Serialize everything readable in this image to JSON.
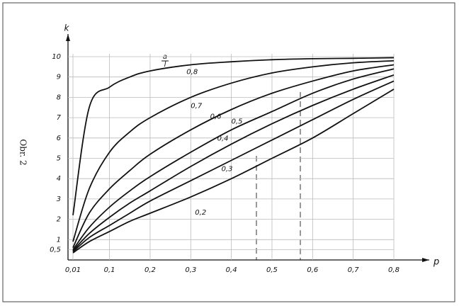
{
  "chart_data": {
    "type": "line",
    "side_caption": "Obr. 2",
    "y_label": "k",
    "x_label": "p",
    "legend_title": {
      "numerator": "a",
      "denominator": "l"
    },
    "x": [
      0.01,
      0.05,
      0.1,
      0.15,
      0.2,
      0.3,
      0.4,
      0.5,
      0.6,
      0.7,
      0.8
    ],
    "series": [
      {
        "name": "0,8",
        "color": "#111",
        "values": [
          2.2,
          7.5,
          8.5,
          9.0,
          9.3,
          9.6,
          9.75,
          9.85,
          9.9,
          9.92,
          9.95
        ]
      },
      {
        "name": "0,7",
        "color": "#111",
        "values": [
          0.9,
          3.5,
          5.3,
          6.3,
          7.0,
          8.0,
          8.7,
          9.2,
          9.5,
          9.7,
          9.8
        ]
      },
      {
        "name": "0,6",
        "color": "#111",
        "values": [
          0.6,
          2.3,
          3.5,
          4.4,
          5.2,
          6.4,
          7.4,
          8.2,
          8.8,
          9.3,
          9.6
        ]
      },
      {
        "name": "0,5",
        "color": "#111",
        "values": [
          0.5,
          1.6,
          2.6,
          3.4,
          4.1,
          5.3,
          6.4,
          7.3,
          8.2,
          8.9,
          9.4
        ]
      },
      {
        "name": "0,4",
        "color": "#111",
        "values": [
          0.45,
          1.3,
          2.1,
          2.8,
          3.4,
          4.6,
          5.7,
          6.7,
          7.6,
          8.4,
          9.1
        ]
      },
      {
        "name": "0,3",
        "color": "#111",
        "values": [
          0.4,
          1.1,
          1.7,
          2.3,
          2.9,
          3.9,
          4.9,
          5.9,
          6.9,
          7.9,
          8.8
        ]
      },
      {
        "name": "0,2",
        "color": "#111",
        "values": [
          0.35,
          0.9,
          1.4,
          1.9,
          2.3,
          3.1,
          4.0,
          5.0,
          6.0,
          7.2,
          8.4
        ]
      }
    ],
    "xlim": [
      0.01,
      0.8
    ],
    "xticks": [
      {
        "value": 0.01,
        "label": "0,01"
      },
      {
        "value": 0.1,
        "label": "0,1"
      },
      {
        "value": 0.2,
        "label": "0,2"
      },
      {
        "value": 0.3,
        "label": "0,3"
      },
      {
        "value": 0.4,
        "label": "0,4"
      },
      {
        "value": 0.5,
        "label": "0,5"
      },
      {
        "value": 0.6,
        "label": "0,6"
      },
      {
        "value": 0.7,
        "label": "0,7"
      },
      {
        "value": 0.8,
        "label": "0,8"
      }
    ],
    "ylim": [
      0,
      10
    ],
    "yticks": [
      {
        "value": 0.5,
        "label": "0,5"
      },
      1,
      2,
      3,
      4,
      5,
      6,
      7,
      8,
      9,
      10
    ],
    "grid": true
  }
}
